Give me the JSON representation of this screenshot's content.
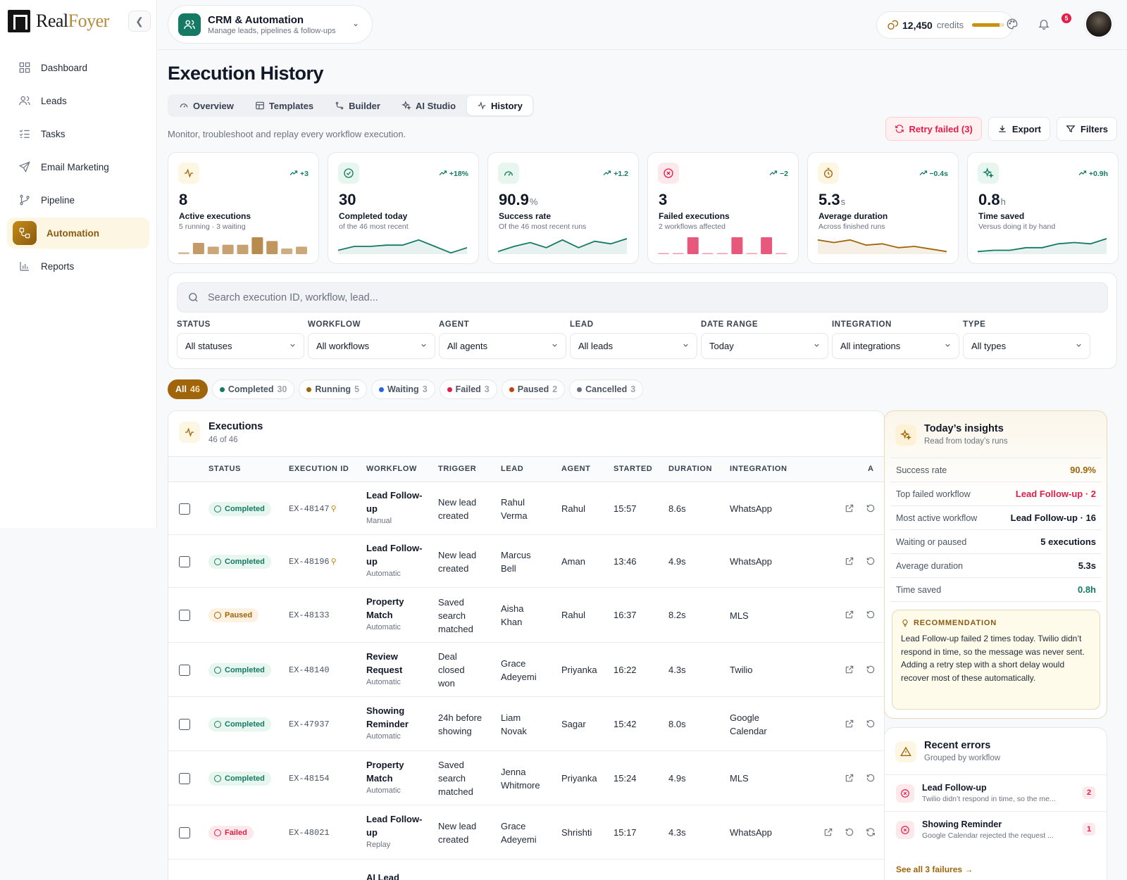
{
  "brand": {
    "name_part1": "Real",
    "name_part2": "Foyer"
  },
  "sidebar": {
    "items": [
      {
        "label": "Dashboard",
        "icon": "grid-icon"
      },
      {
        "label": "Leads",
        "icon": "users-icon"
      },
      {
        "label": "Tasks",
        "icon": "checklist-icon"
      },
      {
        "label": "Email Marketing",
        "icon": "send-icon"
      },
      {
        "label": "Pipeline",
        "icon": "branch-icon"
      },
      {
        "label": "Automation",
        "icon": "workflow-icon",
        "active": true
      },
      {
        "label": "Reports",
        "icon": "bar-chart-icon"
      }
    ]
  },
  "module": {
    "title": "CRM & Automation",
    "subtitle": "Manage leads, pipelines & follow-ups"
  },
  "topbar": {
    "credits_value": "12,450",
    "credits_label": "credits",
    "credits_fill": 0.85,
    "notifications": "5"
  },
  "page": {
    "title": "Execution History",
    "subtitle": "Monitor, troubleshoot and replay every workflow execution."
  },
  "tabs": [
    {
      "label": "Overview"
    },
    {
      "label": "Templates"
    },
    {
      "label": "Builder"
    },
    {
      "label": "AI Studio"
    },
    {
      "label": "History",
      "active": true
    }
  ],
  "actions": {
    "retry": "Retry failed (3)",
    "export": "Export",
    "filters": "Filters"
  },
  "kpis": [
    {
      "trend": "+3",
      "value": "8",
      "unit": "",
      "label": "Active executions",
      "sub": "5 running · 3 waiting",
      "icon_color": "#a0650a",
      "icon_bg": "#fdf6e3",
      "chart": "bars",
      "color": "#b98a4d",
      "bars": [
        1,
        6,
        4,
        5,
        5,
        9,
        7,
        3,
        4
      ]
    },
    {
      "trend": "+18%",
      "value": "30",
      "unit": "",
      "label": "Completed today",
      "sub": "of the 46 most recent",
      "icon_color": "#147a63",
      "icon_bg": "#e7f6ef",
      "chart": "line",
      "color": "#147a63",
      "line": [
        3,
        6,
        6,
        7,
        7,
        11,
        6,
        1,
        5
      ]
    },
    {
      "trend": "+1.2",
      "value": "90.9",
      "unit": "%",
      "label": "Success rate",
      "sub": "Of the 46 most recent runs",
      "icon_color": "#147a63",
      "icon_bg": "#e7f6ef",
      "chart": "line",
      "color": "#147a63",
      "line": [
        2,
        6,
        9,
        5,
        11,
        5,
        10,
        8,
        12
      ]
    },
    {
      "trend": "−2",
      "value": "3",
      "unit": "",
      "label": "Failed executions",
      "sub": "2 workflows affected",
      "icon_color": "#e11d48",
      "icon_bg": "#fde8ec",
      "chart": "bars",
      "color": "#e7587c",
      "bars": [
        0,
        0,
        8,
        0,
        0,
        8,
        0,
        8,
        0
      ]
    },
    {
      "trend": "−0.4s",
      "value": "5.3",
      "unit": "s",
      "label": "Average duration",
      "sub": "Across finished runs",
      "icon_color": "#a0650a",
      "icon_bg": "#fdf6e3",
      "chart": "line",
      "color": "#a0650a",
      "line": [
        11,
        9,
        11,
        7,
        8,
        5,
        6,
        4,
        2
      ]
    },
    {
      "trend": "+0.9h",
      "value": "0.8",
      "unit": "h",
      "label": "Time saved",
      "sub": "Versus doing it by hand",
      "icon_color": "#147a63",
      "icon_bg": "#e7f6ef",
      "chart": "line",
      "color": "#147a63",
      "line": [
        2,
        3,
        3,
        5,
        5,
        8,
        9,
        8,
        12
      ]
    }
  ],
  "search": {
    "placeholder": "Search execution ID, workflow, lead..."
  },
  "filters": [
    {
      "label": "STATUS",
      "value": "All statuses"
    },
    {
      "label": "WORKFLOW",
      "value": "All workflows"
    },
    {
      "label": "AGENT",
      "value": "All agents"
    },
    {
      "label": "LEAD",
      "value": "All leads"
    },
    {
      "label": "DATE RANGE",
      "value": "Today"
    },
    {
      "label": "INTEGRATION",
      "value": "All integrations"
    },
    {
      "label": "TYPE",
      "value": "All types"
    }
  ],
  "chips": [
    {
      "label": "All",
      "count": "46",
      "active": true
    },
    {
      "label": "Completed",
      "count": "30",
      "dot": "#147a63"
    },
    {
      "label": "Running",
      "count": "5",
      "dot": "#a0650a"
    },
    {
      "label": "Waiting",
      "count": "3",
      "dot": "#2563eb"
    },
    {
      "label": "Failed",
      "count": "3",
      "dot": "#e11d48"
    },
    {
      "label": "Paused",
      "count": "2",
      "dot": "#c2410c"
    },
    {
      "label": "Cancelled",
      "count": "3",
      "dot": "#6b7280"
    }
  ],
  "executions": {
    "title": "Executions",
    "subtitle": "46 of 46",
    "columns": [
      "STATUS",
      "EXECUTION ID",
      "WORKFLOW",
      "TRIGGER",
      "LEAD",
      "AGENT",
      "STARTED",
      "DURATION",
      "INTEGRATION",
      "A"
    ],
    "rows": [
      {
        "status": "Completed",
        "kind": "completed",
        "id": "EX-48147",
        "pinned": true,
        "wf1": "Lead Follow-",
        "wf2": "up",
        "type": "Manual",
        "trigger": [
          "New lead",
          "created"
        ],
        "lead": [
          "Rahul",
          "Verma"
        ],
        "agent": "Rahul",
        "started": "15:57",
        "duration": "8.6s",
        "integration": [
          "WhatsApp"
        ]
      },
      {
        "status": "Completed",
        "kind": "completed",
        "id": "EX-48196",
        "pinned": true,
        "wf1": "Lead Follow-",
        "wf2": "up",
        "type": "Automatic",
        "trigger": [
          "New lead",
          "created"
        ],
        "lead": [
          "Marcus",
          "Bell"
        ],
        "agent": "Aman",
        "started": "13:46",
        "duration": "4.9s",
        "integration": [
          "WhatsApp"
        ]
      },
      {
        "status": "Paused",
        "kind": "paused",
        "id": "EX-48133",
        "pinned": false,
        "wf1": "Property",
        "wf2": "Match",
        "type": "Automatic",
        "trigger": [
          "Saved",
          "search",
          "matched"
        ],
        "lead": [
          "Aisha",
          "Khan"
        ],
        "agent": "Rahul",
        "started": "16:37",
        "duration": "8.2s",
        "integration": [
          "MLS"
        ]
      },
      {
        "status": "Completed",
        "kind": "completed",
        "id": "EX-48140",
        "pinned": false,
        "wf1": "Review",
        "wf2": "Request",
        "type": "Automatic",
        "trigger": [
          "Deal",
          "closed",
          "won"
        ],
        "lead": [
          "Grace",
          "Adeyemi"
        ],
        "agent": "Priyanka",
        "started": "16:22",
        "duration": "4.3s",
        "integration": [
          "Twilio"
        ]
      },
      {
        "status": "Completed",
        "kind": "completed",
        "id": "EX-47937",
        "pinned": false,
        "wf1": "Showing",
        "wf2": "Reminder",
        "type": "Automatic",
        "trigger": [
          "24h before",
          "showing"
        ],
        "lead": [
          "Liam",
          "Novak"
        ],
        "agent": "Sagar",
        "started": "15:42",
        "duration": "8.0s",
        "integration": [
          "Google",
          "Calendar"
        ]
      },
      {
        "status": "Completed",
        "kind": "completed",
        "id": "EX-48154",
        "pinned": false,
        "wf1": "Property",
        "wf2": "Match",
        "type": "Automatic",
        "trigger": [
          "Saved",
          "search",
          "matched"
        ],
        "lead": [
          "Jenna",
          "Whitmore"
        ],
        "agent": "Priyanka",
        "started": "15:24",
        "duration": "4.9s",
        "integration": [
          "MLS"
        ]
      },
      {
        "status": "Failed",
        "kind": "failed",
        "id": "EX-48021",
        "pinned": false,
        "wf1": "Lead Follow-",
        "wf2": "up",
        "type": "Replay",
        "trigger": [
          "New lead",
          "created"
        ],
        "lead": [
          "Grace",
          "Adeyemi"
        ],
        "agent": "Shrishti",
        "started": "15:17",
        "duration": "4.3s",
        "integration": [
          "WhatsApp"
        ]
      },
      {
        "status": "",
        "kind": "",
        "id": "",
        "pinned": false,
        "wf1": "AI Lead",
        "wf2": "",
        "type": "",
        "trigger": [],
        "lead": [],
        "agent": "",
        "started": "",
        "duration": "",
        "integration": []
      }
    ]
  },
  "insights": {
    "title": "Today’s insights",
    "subtitle": "Read from today’s runs",
    "rows": [
      {
        "label": "Success rate",
        "value": "90.9%",
        "color": "#a0650a"
      },
      {
        "label": "Top failed workflow",
        "value": "Lead Follow-up · 2",
        "color": "#e11d48"
      },
      {
        "label": "Most active workflow",
        "value": "Lead Follow-up · 16",
        "color": "#111827"
      },
      {
        "label": "Waiting or paused",
        "value": "5 executions",
        "color": "#111827"
      },
      {
        "label": "Average duration",
        "value": "5.3s",
        "color": "#111827"
      },
      {
        "label": "Time saved",
        "value": "0.8h",
        "color": "#147a63"
      }
    ],
    "rec_title": "RECOMMENDATION",
    "rec_body": "Lead Follow-up failed 2 times today. Twilio didn’t respond in time, so the message was never sent. Adding a retry step with a short delay would recover most of these automatically."
  },
  "errors": {
    "title": "Recent errors",
    "subtitle": "Grouped by workflow",
    "items": [
      {
        "name": "Lead Follow-up",
        "desc": "Twilio didn’t respond in time, so the me...",
        "count": "2"
      },
      {
        "name": "Showing Reminder",
        "desc": "Google Calendar rejected the request ...",
        "count": "1"
      }
    ],
    "see_all": "See all 3 failures"
  }
}
